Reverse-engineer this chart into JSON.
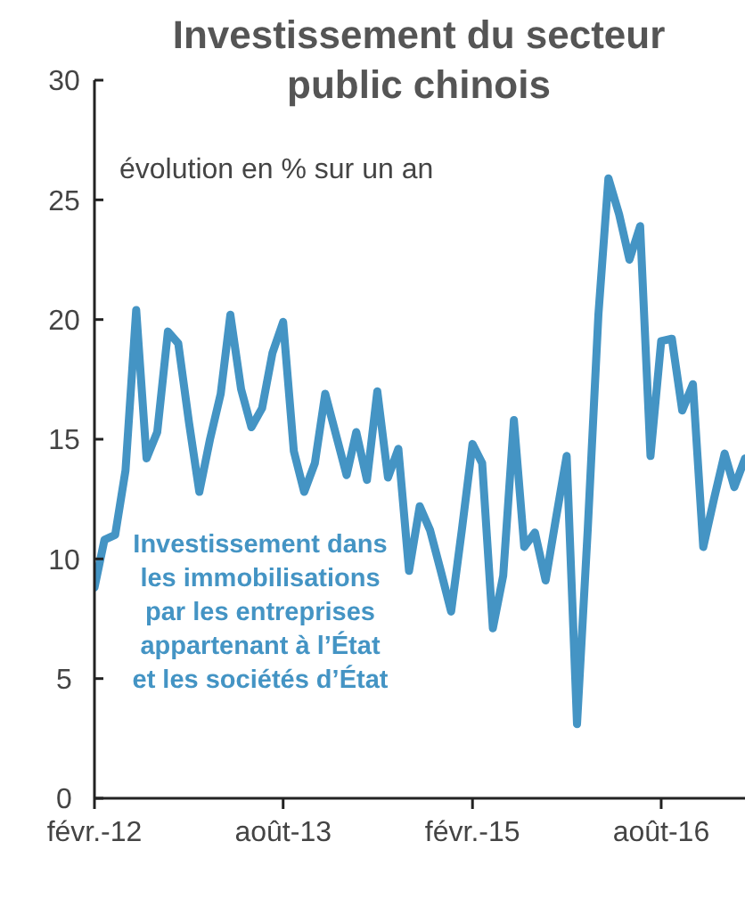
{
  "chart_data": {
    "type": "line",
    "title": "Investissement du secteur public chinois",
    "subtitle": "évolution en % sur un an",
    "x": [
      "2012-02",
      "2012-03",
      "2012-04",
      "2012-05",
      "2012-06",
      "2012-07",
      "2012-08",
      "2012-09",
      "2012-10",
      "2012-11",
      "2012-12",
      "2013-01",
      "2013-02",
      "2013-03",
      "2013-04",
      "2013-05",
      "2013-06",
      "2013-07",
      "2013-08",
      "2013-09",
      "2013-10",
      "2013-11",
      "2013-12",
      "2014-01",
      "2014-02",
      "2014-03",
      "2014-04",
      "2014-05",
      "2014-06",
      "2014-07",
      "2014-08",
      "2014-09",
      "2014-10",
      "2014-11",
      "2014-12",
      "2015-01",
      "2015-02",
      "2015-03",
      "2015-04",
      "2015-05",
      "2015-06",
      "2015-07",
      "2015-08",
      "2015-09",
      "2015-10",
      "2015-11",
      "2015-12",
      "2016-01",
      "2016-02",
      "2016-03",
      "2016-04",
      "2016-05",
      "2016-06",
      "2016-07",
      "2016-08",
      "2016-09",
      "2016-10",
      "2016-11",
      "2016-12",
      "2017-01",
      "2017-02",
      "2017-03",
      "2017-04"
    ],
    "series": [
      {
        "name": "Investissement dans les immobilisations par les entreprises appartenant à l’État et les sociétés d’État",
        "color": "#4494c4",
        "values": [
          8.8,
          10.8,
          11.0,
          13.7,
          20.4,
          14.2,
          15.3,
          19.5,
          19.0,
          15.7,
          12.8,
          15.0,
          16.9,
          20.2,
          17.1,
          15.5,
          16.3,
          18.6,
          19.9,
          14.5,
          12.8,
          14.0,
          16.9,
          15.2,
          13.5,
          15.3,
          13.3,
          17.0,
          13.4,
          14.6,
          9.5,
          12.2,
          11.2,
          9.5,
          7.8,
          11.2,
          14.8,
          14.0,
          7.1,
          9.3,
          15.8,
          10.5,
          11.1,
          9.1,
          11.7,
          14.3,
          3.1,
          11.2,
          20.2,
          25.9,
          24.4,
          22.5,
          23.9,
          14.3,
          19.1,
          19.2,
          16.2,
          17.3,
          10.5,
          12.5,
          14.4,
          13.0,
          14.2
        ]
      }
    ],
    "xlim": [
      "2012-02",
      "2017-04"
    ],
    "xticks": [
      {
        "value": "2012-02",
        "label": "févr.-12"
      },
      {
        "value": "2013-08",
        "label": "août-13"
      },
      {
        "value": "2015-02",
        "label": "févr.-15"
      },
      {
        "value": "2016-08",
        "label": "août-16"
      }
    ],
    "ylim": [
      0,
      30
    ],
    "yticks": [
      0,
      5,
      10,
      15,
      20,
      25,
      30
    ],
    "grid": false,
    "line_style": "solid",
    "marker": "none"
  }
}
